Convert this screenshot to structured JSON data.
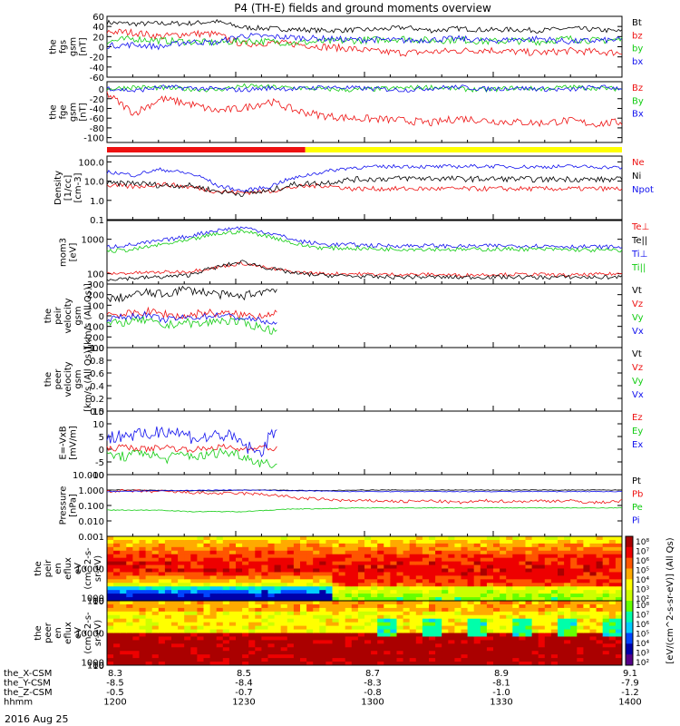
{
  "title": "P4 (TH-E) fields and ground moments overview",
  "date_label": "2016 Aug 25",
  "chart_data": [
    {
      "type": "line",
      "id": "fgs",
      "ylabel": [
        "the",
        "fgs",
        "gsm",
        "[nT]"
      ],
      "yticks": [
        "60",
        "40",
        "20",
        "0",
        "-20",
        "-40",
        "-60"
      ],
      "ylim": [
        -60,
        60
      ],
      "series": [
        {
          "name": "Bt",
          "color": "#000000",
          "level": [
            48,
            45,
            46,
            46,
            50,
            38,
            36,
            34,
            32,
            33,
            34,
            38,
            32,
            36,
            33,
            34,
            32,
            36,
            34,
            30
          ],
          "noise": 5
        },
        {
          "name": "bz",
          "color": "#ee1111",
          "level": [
            30,
            28,
            20,
            26,
            25,
            5,
            8,
            5,
            0,
            -4,
            -10,
            -12,
            -10,
            -8,
            -6,
            -10,
            -12,
            -8,
            -10,
            -12
          ],
          "noise": 7
        },
        {
          "name": "by",
          "color": "#11cc11",
          "level": [
            10,
            16,
            12,
            10,
            8,
            12,
            10,
            8,
            10,
            12,
            14,
            16,
            12,
            14,
            10,
            12,
            10,
            16,
            12,
            14
          ],
          "noise": 7
        },
        {
          "name": "bx",
          "color": "#1111ee",
          "level": [
            2,
            4,
            0,
            10,
            8,
            22,
            20,
            18,
            16,
            14,
            14,
            12,
            14,
            16,
            12,
            14,
            16,
            10,
            12,
            14
          ],
          "noise": 6
        }
      ]
    },
    {
      "type": "line",
      "id": "fge",
      "ylabel": [
        "the",
        "fge",
        "gsm",
        "[nT]"
      ],
      "yticks": [
        "0",
        "-20",
        "-40",
        "-60",
        "-80",
        "-100"
      ],
      "ylim": [
        -110,
        15
      ],
      "series": [
        {
          "name": "Bz",
          "color": "#ee1111",
          "level": [
            -10,
            -50,
            -20,
            -30,
            -45,
            -40,
            -25,
            -45,
            -55,
            -60,
            -62,
            -65,
            -70,
            -60,
            -65,
            -68,
            -70,
            -65,
            -72,
            -68
          ],
          "noise": 8
        },
        {
          "name": "By",
          "color": "#11cc11",
          "level": [
            0,
            4,
            2,
            0,
            -2,
            6,
            4,
            2,
            0,
            -2,
            0,
            2,
            4,
            0,
            -2,
            2,
            0,
            4,
            2,
            0
          ],
          "noise": 5
        },
        {
          "name": "Bx",
          "color": "#1111ee",
          "level": [
            2,
            -4,
            4,
            2,
            0,
            -2,
            2,
            0,
            4,
            2,
            0,
            -2,
            2,
            4,
            0,
            2,
            0,
            -2,
            4,
            2
          ],
          "noise": 5
        }
      ]
    },
    {
      "type": "line",
      "id": "density",
      "log": true,
      "ylabel": [
        "Density",
        "[1/cc]",
        "[cm-3]"
      ],
      "yticks": [
        "100.0",
        "10.0",
        "1.0",
        "0.1"
      ],
      "ylim": [
        0.1,
        200
      ],
      "series": [
        {
          "name": "Ne",
          "color": "#ee1111",
          "level": [
            6,
            5,
            7,
            5,
            3,
            2.5,
            3,
            5,
            6,
            4,
            4,
            4,
            4,
            4,
            4,
            4,
            4,
            4,
            4,
            4
          ],
          "noise": 0.25
        },
        {
          "name": "Ni",
          "color": "#000000",
          "level": [
            7,
            8,
            6,
            6,
            3,
            2.2,
            3,
            7,
            8,
            12,
            13,
            14,
            14,
            13,
            13,
            13,
            12,
            13,
            12,
            12
          ],
          "noise": 0.3
        },
        {
          "name": "Npot",
          "color": "#1111ee",
          "level": [
            30,
            20,
            40,
            25,
            6,
            3,
            5,
            15,
            30,
            50,
            55,
            60,
            55,
            58,
            60,
            56,
            55,
            58,
            55,
            50
          ],
          "noise": 0.2
        }
      ]
    },
    {
      "type": "line",
      "id": "temp",
      "log": true,
      "ylabel": [
        "mom3",
        "[eV]"
      ],
      "yticks": [
        "1000",
        "100"
      ],
      "ylim": [
        50,
        3500
      ],
      "series": [
        {
          "name": "Te⊥",
          "color": "#ee1111",
          "level": [
            100,
            105,
            110,
            115,
            150,
            200,
            140,
            110,
            100,
            100,
            95,
            95,
            95,
            90,
            95,
            95,
            95,
            90,
            95,
            100
          ],
          "noise": 0.1
        },
        {
          "name": "Te||",
          "color": "#000000",
          "level": [
            70,
            75,
            80,
            90,
            150,
            220,
            140,
            100,
            90,
            85,
            80,
            80,
            80,
            78,
            80,
            80,
            78,
            80,
            78,
            80
          ],
          "noise": 0.12
        },
        {
          "name": "Ti⊥",
          "color": "#1111ee",
          "level": [
            600,
            700,
            900,
            1200,
            1800,
            2200,
            1500,
            900,
            700,
            700,
            650,
            650,
            650,
            620,
            640,
            650,
            640,
            620,
            600,
            600
          ],
          "noise": 0.12
        },
        {
          "name": "Ti||",
          "color": "#11cc11",
          "level": [
            450,
            500,
            700,
            900,
            1400,
            1700,
            1200,
            700,
            550,
            550,
            520,
            520,
            520,
            500,
            510,
            520,
            510,
            500,
            480,
            480
          ],
          "noise": 0.12
        }
      ]
    },
    {
      "type": "line",
      "id": "peir",
      "xmax": 0.33,
      "ylabel": [
        "the",
        "peir",
        "velocity",
        "gsm",
        "[km/s (All Qs)]"
      ],
      "yticks": [
        "300",
        "200",
        "100",
        "0",
        "-100",
        "-200",
        "-300"
      ],
      "ylim": [
        -300,
        300
      ],
      "series": [
        {
          "name": "Vt",
          "color": "#000000",
          "level": [
            150,
            180,
            220,
            200,
            250,
            230,
            200,
            180,
            220,
            260
          ],
          "noise": 40
        },
        {
          "name": "Vz",
          "color": "#ee1111",
          "level": [
            20,
            10,
            40,
            20,
            -10,
            30,
            20,
            10,
            0,
            40
          ],
          "noise": 40
        },
        {
          "name": "Vy",
          "color": "#11cc11",
          "level": [
            -80,
            -60,
            -40,
            -100,
            -60,
            -80,
            -40,
            -60,
            -100,
            -150
          ],
          "noise": 40
        },
        {
          "name": "Vx",
          "color": "#1111ee",
          "level": [
            -30,
            -10,
            10,
            -40,
            -20,
            -10,
            10,
            -20,
            -40,
            -80
          ],
          "noise": 30
        }
      ]
    },
    {
      "type": "line",
      "id": "peer",
      "ylabel": [
        "the",
        "peer",
        "velocity",
        "gsm",
        "[km/s (All Qs)]"
      ],
      "yticks": [
        "1.0",
        "0.8",
        "0.6",
        "0.4",
        "0.2",
        "0.0"
      ],
      "ylim": [
        0,
        1
      ],
      "series": [
        {
          "name": "Vt",
          "color": "#000000",
          "level": [],
          "noise": 0
        },
        {
          "name": "Vz",
          "color": "#ee1111",
          "level": [],
          "noise": 0
        },
        {
          "name": "Vy",
          "color": "#11cc11",
          "level": [],
          "noise": 0
        },
        {
          "name": "Vx",
          "color": "#1111ee",
          "level": [],
          "noise": 0
        }
      ]
    },
    {
      "type": "line",
      "id": "efield",
      "xmax": 0.33,
      "ylabel": [
        "E=-VxB",
        "[mV/m]"
      ],
      "yticks": [
        "15",
        "10",
        "5",
        "0",
        "-5",
        "-10"
      ],
      "ylim": [
        -10,
        15
      ],
      "series": [
        {
          "name": "Ez",
          "color": "#ee1111",
          "level": [
            0,
            1,
            0,
            1,
            0,
            0,
            1,
            0,
            1,
            0
          ],
          "noise": 1.2
        },
        {
          "name": "Ey",
          "color": "#11cc11",
          "level": [
            -2,
            -3,
            -1,
            -4,
            -2,
            -3,
            -1,
            -2,
            -5,
            -6
          ],
          "noise": 2
        },
        {
          "name": "Ex",
          "color": "#1111ee",
          "level": [
            4,
            6,
            5,
            8,
            6,
            4,
            6,
            3,
            -2,
            8
          ],
          "noise": 3
        }
      ]
    },
    {
      "type": "line",
      "id": "pressure",
      "log": true,
      "ylabel": [
        "Pressure",
        "[nPa]"
      ],
      "yticks": [
        "10.000",
        "1.000",
        "0.100",
        "0.010",
        "0.001"
      ],
      "ylim": [
        0.001,
        10
      ],
      "series": [
        {
          "name": "Pt",
          "color": "#000000",
          "level": [
            1,
            1,
            0.95,
            0.9,
            0.9,
            1,
            1,
            0.95,
            0.9,
            1,
            1,
            1,
            1,
            1,
            1,
            1,
            1,
            1,
            1,
            1
          ],
          "noise": 0.04
        },
        {
          "name": "Pb",
          "color": "#ee1111",
          "level": [
            0.9,
            0.85,
            0.8,
            0.7,
            0.6,
            0.6,
            0.5,
            0.3,
            0.25,
            0.2,
            0.2,
            0.18,
            0.2,
            0.15,
            0.2,
            0.18,
            0.2,
            0.2,
            0.15,
            0.2
          ],
          "noise": 0.2
        },
        {
          "name": "Pe",
          "color": "#11cc11",
          "level": [
            0.05,
            0.05,
            0.05,
            0.04,
            0.04,
            0.04,
            0.05,
            0.06,
            0.06,
            0.07,
            0.07,
            0.07,
            0.07,
            0.07,
            0.07,
            0.07,
            0.07,
            0.07,
            0.07,
            0.07
          ],
          "noise": 0.05
        },
        {
          "name": "Pi",
          "color": "#1111ee",
          "level": [
            0.8,
            0.85,
            0.9,
            0.95,
            1,
            1,
            0.95,
            0.9,
            0.85,
            0.8,
            0.8,
            0.8,
            0.8,
            0.8,
            0.8,
            0.8,
            0.8,
            0.8,
            0.8,
            0.8
          ],
          "noise": 0.05
        }
      ]
    },
    {
      "type": "heatmap",
      "id": "peir-spec",
      "ylabel": [
        "the",
        "peir",
        "en",
        "eflux",
        "eV",
        "(cm^2-s-",
        "sr-eV)"
      ],
      "yticks": [
        "10000",
        "1000",
        "100",
        "10"
      ],
      "ylim": [
        5,
        20000
      ]
    },
    {
      "type": "heatmap",
      "id": "peer-spec",
      "ylabel": [
        "the",
        "peer",
        "en",
        "eflux",
        "eV",
        "(cm^2-s-",
        "sr-eV)"
      ],
      "yticks": [
        "10000",
        "1000",
        "100",
        "10"
      ],
      "ylim": [
        5,
        20000
      ]
    }
  ],
  "state_bar": {
    "colors": {
      "slow": "#ee1111",
      "fast": "#ffff00"
    },
    "switch_fraction": 0.385
  },
  "colorbar": {
    "ticks": [
      "10⁸",
      "10⁷",
      "10⁶",
      "10⁵",
      "10⁴",
      "10³",
      "10²"
    ],
    "label": "[eV/(cm^2-s-sr-eV)]  (All Qs)",
    "ticks_bottom": [
      "10⁸",
      "10⁷",
      "10⁶",
      "10⁵",
      "10⁴",
      "10³",
      "10²"
    ]
  },
  "xaxis": {
    "row_labels": [
      "the_X-CSM",
      "the_Y-CSM",
      "the_Z-CSM",
      "hhmm"
    ],
    "columns": [
      [
        "8.3",
        "-8.5",
        "-0.5",
        "1200"
      ],
      [
        "8.5",
        "-8.4",
        "-0.7",
        "1230"
      ],
      [
        "8.7",
        "-8.3",
        "-0.8",
        "1300"
      ],
      [
        "8.9",
        "-8.1",
        "-1.0",
        "1330"
      ],
      [
        "9.1",
        "-7.9",
        "-1.2",
        "1400"
      ]
    ]
  }
}
